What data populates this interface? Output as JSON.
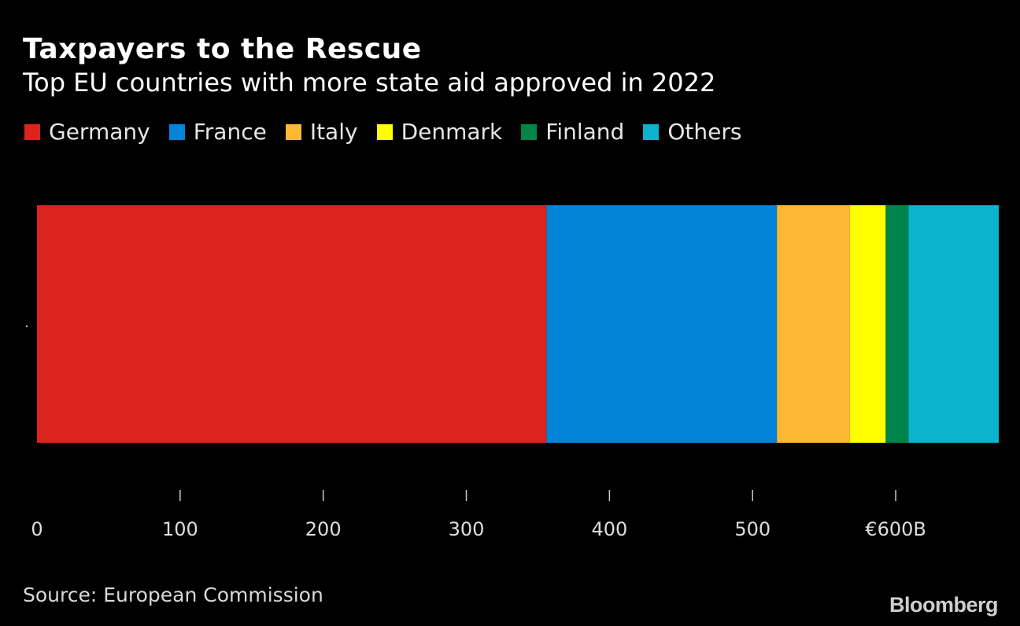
{
  "header": {
    "title": "Taxpayers to the Rescue",
    "subtitle": "Top EU countries with more state aid approved in 2022"
  },
  "chart_data": {
    "type": "bar",
    "orientation": "horizontal",
    "stacked": true,
    "categories": [
      "."
    ],
    "series": [
      {
        "name": "Germany",
        "values": [
          356
        ],
        "color": "#dc241f"
      },
      {
        "name": "France",
        "values": [
          161
        ],
        "color": "#0285d8"
      },
      {
        "name": "Italy",
        "values": [
          51
        ],
        "color": "#fdb833"
      },
      {
        "name": "Denmark",
        "values": [
          25
        ],
        "color": "#ffff00"
      },
      {
        "name": "Finland",
        "values": [
          16
        ],
        "color": "#00844b"
      },
      {
        "name": "Others",
        "values": [
          63
        ],
        "color": "#0bb3cc"
      }
    ],
    "xlim": [
      0,
      672
    ],
    "xticks": [
      0,
      100,
      200,
      300,
      400,
      500,
      600
    ],
    "xtick_labels": [
      "0",
      "100",
      "200",
      "300",
      "400",
      "500",
      "€600B"
    ],
    "grid": false,
    "legend_position": "top-left"
  },
  "footer": {
    "source": "Source: European Commission",
    "brand": "Bloomberg"
  },
  "colors": {
    "background": "#000000",
    "text": "#ffffff",
    "axis": "#cccccc"
  }
}
